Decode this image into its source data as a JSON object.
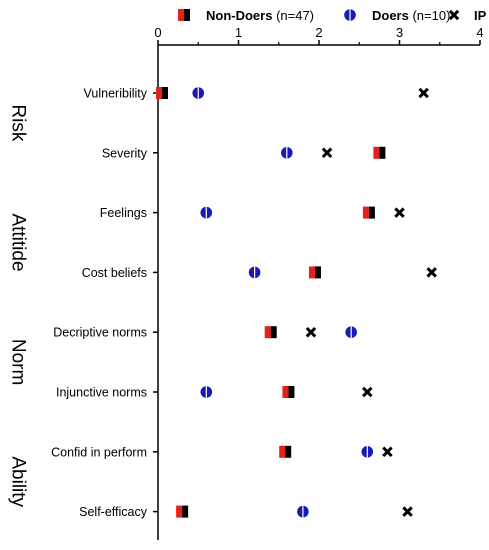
{
  "chart_data": {
    "type": "scatter",
    "xlim": [
      0,
      4
    ],
    "x_ticks": [
      "0",
      "1",
      "2",
      "3",
      "4"
    ],
    "categories": [
      "Vulneribility",
      "Severity",
      "Feelings",
      "Cost beliefs",
      "Decriptive norms",
      "Injunctive norms",
      "Confid in perform",
      "Self-efficacy"
    ],
    "groups": [
      {
        "label": "Risk",
        "categories": [
          "Vulneribility",
          "Severity"
        ]
      },
      {
        "label": "Attitide",
        "categories": [
          "Feelings",
          "Cost beliefs"
        ]
      },
      {
        "label": "Norm",
        "categories": [
          "Decriptive norms",
          "Injunctive norms"
        ]
      },
      {
        "label": "Ability",
        "categories": [
          "Confid in perform",
          "Self-efficacy"
        ]
      }
    ],
    "legend": {
      "position": "top",
      "items": [
        {
          "name": "Non-Doers",
          "suffix": " (n=47)",
          "marker": "split-square"
        },
        {
          "name": "Doers",
          "suffix": " (n=10)",
          "marker": "circle"
        },
        {
          "name": "IP",
          "suffix": "",
          "marker": "x"
        }
      ]
    },
    "series": [
      {
        "name": "Non-Doers",
        "values": [
          0.05,
          2.75,
          2.62,
          1.95,
          1.4,
          1.62,
          1.58,
          0.3
        ]
      },
      {
        "name": "Doers",
        "values": [
          0.5,
          1.6,
          0.6,
          1.2,
          2.4,
          0.6,
          2.6,
          1.8
        ]
      },
      {
        "name": "IP",
        "values": [
          3.3,
          2.1,
          3.0,
          3.4,
          1.9,
          2.6,
          2.85,
          3.1
        ]
      }
    ],
    "grid": false,
    "colors": {
      "red": "#e8201b",
      "black": "#000000",
      "blue": "#1a1ab4"
    }
  }
}
